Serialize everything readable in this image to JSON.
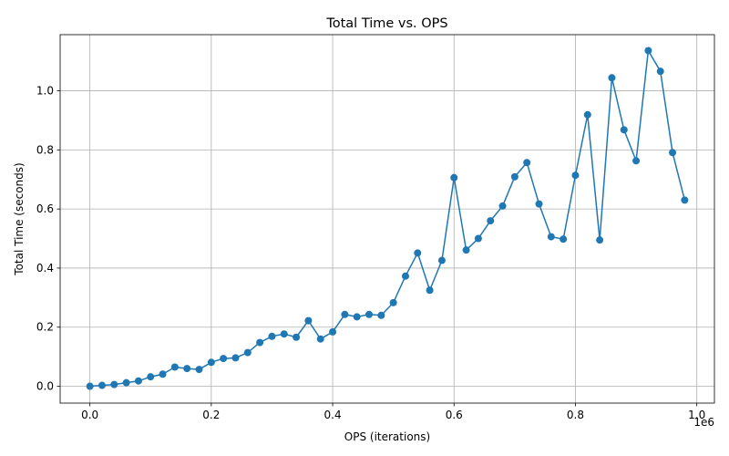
{
  "chart_data": {
    "type": "line",
    "title": "Total Time vs. OPS",
    "xlabel": "OPS (iterations)",
    "ylabel": "Total Time (seconds)",
    "x_offset_label": "1e6",
    "xlim": [
      -0.049,
      1.029
    ],
    "ylim": [
      -0.057,
      1.19
    ],
    "x_ticks": [
      0.0,
      0.2,
      0.4,
      0.6,
      0.8,
      1.0
    ],
    "x_tick_labels": [
      "0.0",
      "0.2",
      "0.4",
      "0.6",
      "0.8",
      "1.0"
    ],
    "y_ticks": [
      0.0,
      0.2,
      0.4,
      0.6,
      0.8,
      1.0
    ],
    "y_tick_labels": [
      "0.0",
      "0.2",
      "0.4",
      "0.6",
      "0.8",
      "1.0"
    ],
    "grid": true,
    "marker": "circle",
    "color": "#1f77b4",
    "series": [
      {
        "x": [
          0,
          20000,
          40000,
          60000,
          80000,
          100000,
          120000,
          140000,
          160000,
          180000,
          200000,
          220000,
          240000,
          260000,
          280000,
          300000,
          320000,
          340000,
          360000,
          380000,
          400000,
          420000,
          440000,
          460000,
          480000,
          500000,
          520000,
          540000,
          560000,
          580000,
          600000,
          620000,
          640000,
          660000,
          680000,
          700000,
          720000,
          740000,
          760000,
          780000,
          800000,
          820000,
          840000,
          860000,
          880000,
          900000,
          920000,
          940000,
          960000,
          980000
        ],
        "y": [
          0.0,
          0.003,
          0.006,
          0.012,
          0.018,
          0.032,
          0.041,
          0.065,
          0.06,
          0.057,
          0.081,
          0.094,
          0.096,
          0.114,
          0.148,
          0.169,
          0.177,
          0.166,
          0.222,
          0.16,
          0.184,
          0.243,
          0.235,
          0.243,
          0.24,
          0.283,
          0.373,
          0.451,
          0.325,
          0.426,
          0.706,
          0.461,
          0.5,
          0.56,
          0.61,
          0.709,
          0.757,
          0.617,
          0.506,
          0.498,
          0.714,
          0.919,
          0.495,
          1.044,
          0.868,
          0.763,
          1.136,
          1.066,
          0.791,
          0.63
        ]
      }
    ]
  }
}
